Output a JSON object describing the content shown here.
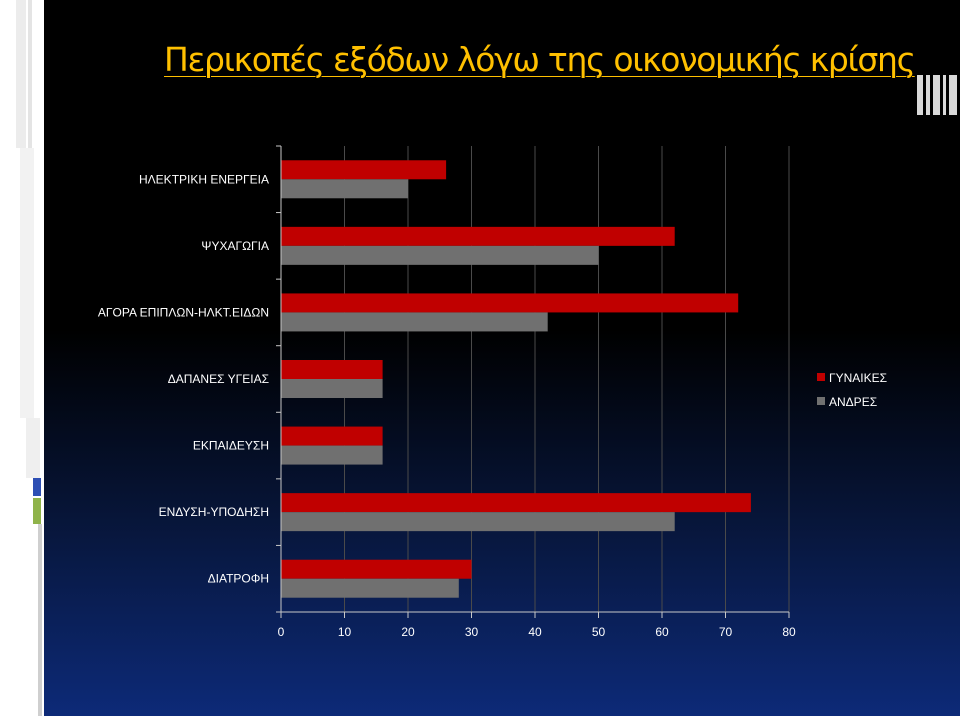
{
  "slide": {
    "title": "Περικοπές εξόδων λόγω της οικονομικής κρίσης",
    "colors": {
      "title": "#ffc000",
      "background_top": "#000000",
      "background_bottom": "#0d2a78"
    }
  },
  "chart_data": {
    "type": "bar",
    "orientation": "horizontal",
    "categories": [
      "ΗΛΕΚΤΡΙΚΗ ΕΝΕΡΓΕΙΑ",
      "ΨΥΧΑΓΩΓΙΑ",
      "ΑΓΟΡΑ ΕΠΙΠΛΩΝ-ΗΛΚΤ.ΕΙΔΩΝ",
      "ΔΑΠΑΝΕΣ ΥΓΕΙΑΣ",
      "ΕΚΠΑΙΔΕΥΣΗ",
      "ΕΝΔΥΣΗ-ΥΠΟΔΗΣΗ",
      "ΔΙΑΤΡΟΦΗ"
    ],
    "series": [
      {
        "name": "ΓΥΝΑΙΚΕΣ",
        "color": "#c00000",
        "values": [
          26,
          62,
          72,
          16,
          16,
          74,
          30
        ]
      },
      {
        "name": "ΑΝΔΡΕΣ",
        "color": "#707070",
        "values": [
          20,
          50,
          42,
          16,
          16,
          62,
          28
        ]
      }
    ],
    "xlim": [
      0,
      80
    ],
    "xticks": [
      0,
      10,
      20,
      30,
      40,
      50,
      60,
      70,
      80
    ],
    "grid": true,
    "legend_position": "right",
    "title": "",
    "xlabel": "",
    "ylabel": ""
  }
}
